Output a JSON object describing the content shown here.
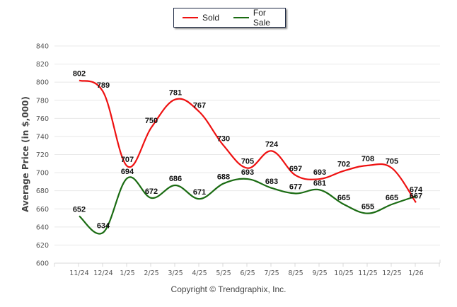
{
  "chart_data": {
    "type": "line",
    "title": "",
    "xlabel": "",
    "ylabel": "Average Price (in $,000)",
    "ylim": [
      600,
      840
    ],
    "yticks": [
      "600",
      "620",
      "640",
      "660",
      "680",
      "700",
      "720",
      "740",
      "760",
      "780",
      "800",
      "820",
      "840"
    ],
    "grid": true,
    "legend_position": "top-center",
    "categories": [
      "11/24",
      "12/24",
      "1/25",
      "2/25",
      "3/25",
      "4/25",
      "5/25",
      "6/25",
      "7/25",
      "8/25",
      "9/25",
      "10/25",
      "11/25",
      "12/25",
      "1/26"
    ],
    "series": [
      {
        "name": "Sold",
        "color": "#ee1111",
        "values": [
          802,
          789,
          707,
          750,
          781,
          767,
          730,
          705,
          724,
          697,
          693,
          702,
          708,
          705,
          667
        ]
      },
      {
        "name": "For Sale",
        "color": "#1a6b12",
        "values": [
          652,
          634,
          694,
          672,
          686,
          671,
          688,
          693,
          683,
          677,
          681,
          665,
          655,
          665,
          674
        ]
      }
    ]
  },
  "legend": {
    "sold": "Sold",
    "for_sale": "For Sale"
  },
  "footer": {
    "copyright": "Copyright © Trendgraphix, Inc."
  }
}
